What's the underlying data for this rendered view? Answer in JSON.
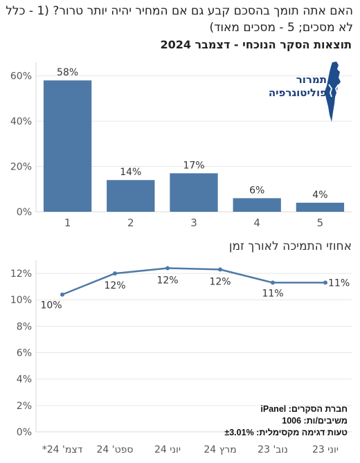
{
  "question": "האם אתה תומך בהסכם קבע גם אם המחיר יהיה יותר טרור? (1 - כלל לא מסכים; 5 - מסכים מאוד)",
  "subtitle": "תוצאות הסקר הנוכחי - דצמבר 2024",
  "logo": {
    "line1": "תמרור",
    "line2": "פוליטוגרפיה"
  },
  "info": {
    "line1": "חברת הסקרים: iPanel",
    "line2": "משיבים/ות: 1006",
    "line3": "טעות דגימה מקסימלית: ±3.01%"
  },
  "colors": {
    "bar": "#4e79a7",
    "line": "#4e79a7",
    "grid": "#e6e6e6",
    "text": "#555555"
  },
  "chart_data": [
    {
      "type": "bar",
      "title": "תוצאות הסקר הנוכחי - דצמבר 2024",
      "categories": [
        "1",
        "2",
        "3",
        "4",
        "5"
      ],
      "values": [
        58,
        14,
        17,
        6,
        4
      ],
      "value_labels": [
        "58%",
        "14%",
        "17%",
        "6%",
        "4%"
      ],
      "y_ticks": [
        "0%",
        "20%",
        "40%",
        "60%"
      ],
      "ylim": [
        0,
        66
      ],
      "grid": true
    },
    {
      "type": "line",
      "title": "אחוזי התמיכה לאורך זמן",
      "categories": [
        "דצמ' 24*",
        "ספט' 24",
        "יוני 24",
        "מרץ 24",
        "נוב' 23",
        "יוני 23"
      ],
      "values": [
        10.4,
        12.0,
        12.4,
        12.3,
        11.3,
        11.3
      ],
      "value_labels": [
        "10%",
        "12%",
        "12%",
        "12%",
        "11%",
        "11%"
      ],
      "y_ticks": [
        "0%",
        "2%",
        "4%",
        "6%",
        "8%",
        "10%",
        "12%"
      ],
      "ylim": [
        0,
        13
      ],
      "grid": true
    }
  ]
}
